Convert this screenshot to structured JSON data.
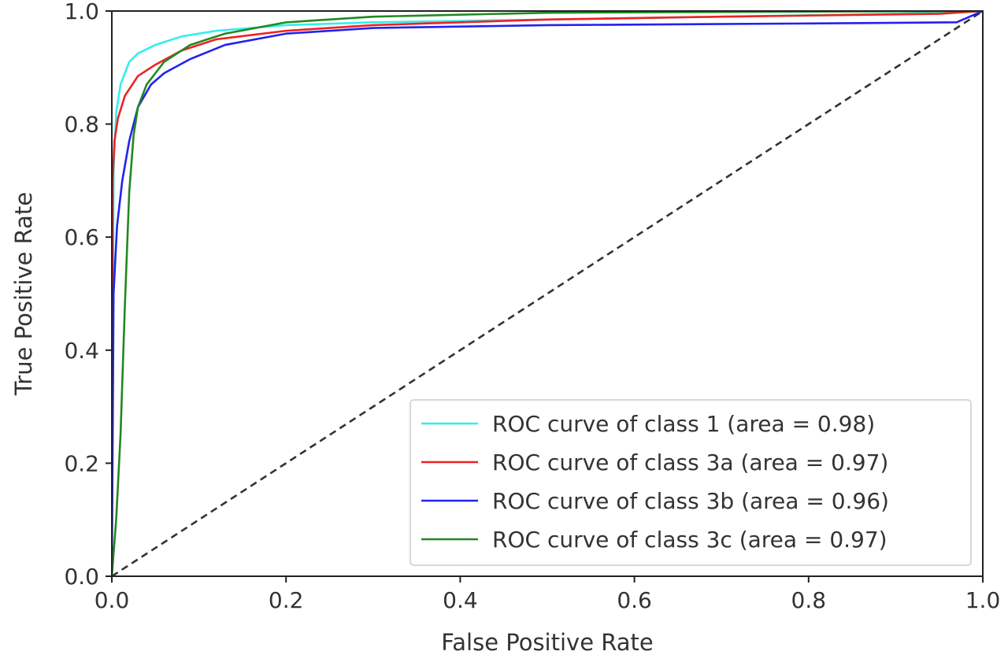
{
  "chart_data": {
    "type": "line",
    "title": "",
    "xlabel": "False Positive Rate",
    "ylabel": "True Positive Rate",
    "xlim": [
      0.0,
      1.0
    ],
    "ylim": [
      0.0,
      1.0
    ],
    "xticks": [
      "0.0",
      "0.2",
      "0.4",
      "0.6",
      "0.8",
      "1.0"
    ],
    "yticks": [
      "0.0",
      "0.2",
      "0.4",
      "0.6",
      "0.8",
      "1.0"
    ],
    "grid": false,
    "legend_position": "lower-right",
    "series": [
      {
        "name": "ROC curve of class 1 (area = 0.98)",
        "color": "#33eeee",
        "x": [
          0.0,
          0.002,
          0.005,
          0.01,
          0.02,
          0.03,
          0.05,
          0.08,
          0.12,
          0.2,
          0.3,
          0.5,
          0.7,
          0.9,
          1.0
        ],
        "y": [
          0.0,
          0.72,
          0.82,
          0.87,
          0.91,
          0.925,
          0.94,
          0.955,
          0.965,
          0.975,
          0.98,
          0.985,
          0.99,
          0.995,
          1.0
        ]
      },
      {
        "name": "ROC curve of class 3a (area = 0.97)",
        "color": "#ee2222",
        "x": [
          0.0,
          0.001,
          0.003,
          0.007,
          0.015,
          0.03,
          0.05,
          0.08,
          0.12,
          0.2,
          0.3,
          0.5,
          0.7,
          0.95,
          1.0
        ],
        "y": [
          0.0,
          0.7,
          0.77,
          0.81,
          0.85,
          0.885,
          0.905,
          0.93,
          0.95,
          0.965,
          0.975,
          0.985,
          0.99,
          0.995,
          1.0
        ]
      },
      {
        "name": "ROC curve of class 3b (area = 0.96)",
        "color": "#2222ee",
        "x": [
          0.0,
          0.002,
          0.006,
          0.012,
          0.02,
          0.03,
          0.045,
          0.06,
          0.09,
          0.13,
          0.2,
          0.3,
          0.5,
          0.8,
          0.97,
          1.0
        ],
        "y": [
          0.0,
          0.5,
          0.62,
          0.7,
          0.77,
          0.83,
          0.87,
          0.89,
          0.915,
          0.94,
          0.96,
          0.97,
          0.975,
          0.978,
          0.98,
          1.0
        ]
      },
      {
        "name": "ROC curve of class 3c (area = 0.97)",
        "color": "#228822",
        "x": [
          0.0,
          0.005,
          0.01,
          0.015,
          0.02,
          0.025,
          0.03,
          0.04,
          0.06,
          0.09,
          0.13,
          0.2,
          0.3,
          0.5,
          0.8,
          1.0
        ],
        "y": [
          0.0,
          0.1,
          0.25,
          0.48,
          0.68,
          0.78,
          0.83,
          0.87,
          0.91,
          0.94,
          0.96,
          0.98,
          0.99,
          0.997,
          0.999,
          1.0
        ]
      }
    ],
    "reference_line": {
      "style": "dashed",
      "color": "#333333",
      "x": [
        0.0,
        1.0
      ],
      "y": [
        0.0,
        1.0
      ]
    }
  }
}
